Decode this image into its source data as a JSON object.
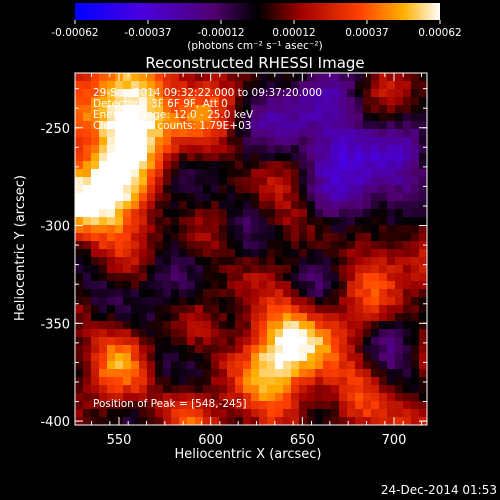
{
  "title": "Reconstructed RHESSI Image",
  "colorbar": {
    "ticks": [
      "-0.00062",
      "-0.00037",
      "-0.00012",
      "0.00012",
      "0.00037",
      "0.00062"
    ],
    "unit_label": "(photons cm⁻² s⁻¹ asec⁻²)"
  },
  "annotations": {
    "time_range": "29-Sep-2014 09:32:22.000 to 09:37:20.000",
    "detectors": "Detectors: 3F 6F 9F, Att 0",
    "energy_range": "Energy Range: 12.0 - 25.0 keV",
    "total_counts": "Clean. Total counts: 1.79E+03",
    "peak_position": "Position of Peak = [548,-245]"
  },
  "axes": {
    "xlabel": "Heliocentric X (arcsec)",
    "ylabel": "Heliocentric Y (arcsec)",
    "xticks": [
      "550",
      "600",
      "650",
      "700"
    ],
    "yticks": [
      "-250",
      "-300",
      "-350",
      "-400"
    ],
    "xlim": [
      526,
      718
    ],
    "ylim": [
      -402,
      -222
    ]
  },
  "footer_date": "24-Dec-2014 01:53",
  "colors": {
    "background": "#000000",
    "colorbar": [
      "#0000ff",
      "#6000c0",
      "#300040",
      "#000000",
      "#c00000",
      "#ff8000",
      "#ffffff"
    ]
  }
}
